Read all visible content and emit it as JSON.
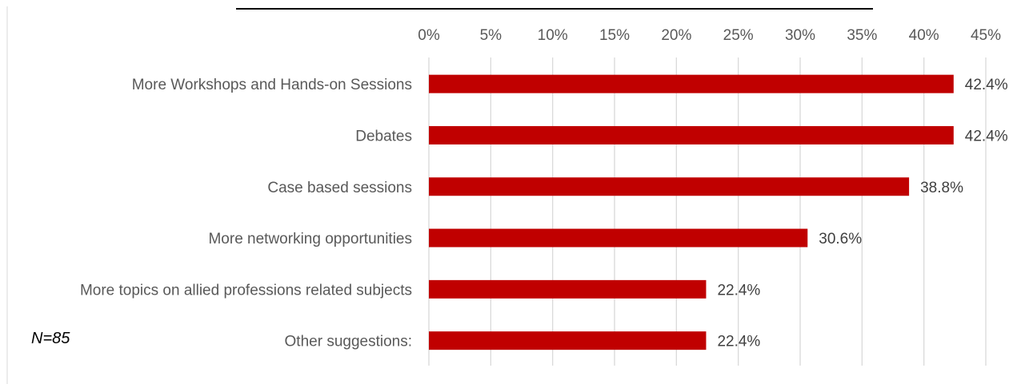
{
  "chart_data": {
    "type": "bar",
    "orientation": "horizontal",
    "title": "",
    "categories": [
      "More Workshops and Hands-on Sessions",
      "Debates",
      "Case based sessions",
      "More networking opportunities",
      "More topics on allied professions related subjects",
      "Other suggestions:"
    ],
    "values": [
      42.4,
      42.4,
      38.8,
      30.6,
      22.4,
      22.4
    ],
    "data_labels": [
      "42.4%",
      "42.4%",
      "38.8%",
      "30.6%",
      "22.4%",
      "22.4%"
    ],
    "xlim": [
      0,
      45
    ],
    "xticks": [
      0,
      5,
      10,
      15,
      20,
      25,
      30,
      35,
      40,
      45
    ],
    "xtick_labels": [
      "0%",
      "5%",
      "10%",
      "15%",
      "20%",
      "25%",
      "30%",
      "35%",
      "40%",
      "45%"
    ],
    "axis_position": "top",
    "grid": true,
    "legend": "none",
    "bar_color": "#c00000",
    "note": "N=85"
  }
}
